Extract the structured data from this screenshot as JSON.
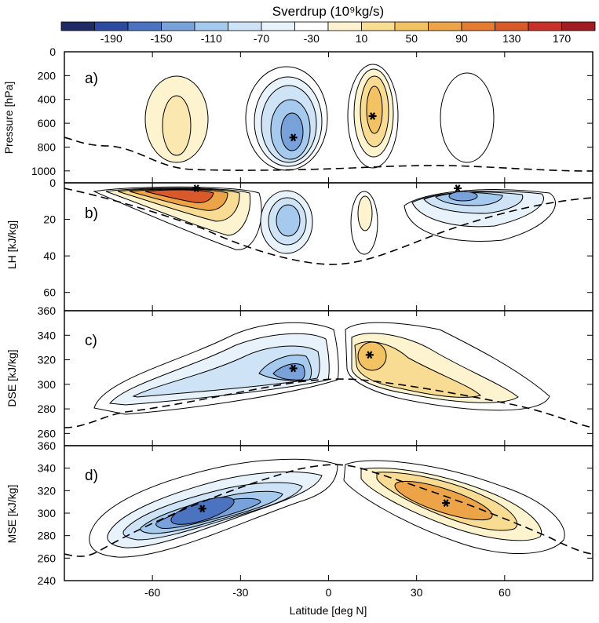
{
  "colorbar": {
    "title": "Sverdrup (10⁹kg/s)",
    "tick_labels": [
      "-190",
      "-150",
      "-110",
      "-70",
      "-30",
      "10",
      "50",
      "90",
      "130",
      "170"
    ],
    "colors": [
      "#1f2a66",
      "#2c4aa0",
      "#4b73c0",
      "#7aa2da",
      "#a6c9ee",
      "#cfe3f6",
      "#e8f2fb",
      "#ffffff",
      "#fdf3cf",
      "#f8dc94",
      "#f2c263",
      "#eda449",
      "#e47c34",
      "#d85a2b",
      "#c8312a",
      "#a11d22"
    ]
  },
  "xaxis": {
    "label": "Latitude [deg N]",
    "ticks": [
      "-60",
      "-30",
      "0",
      "30",
      "60"
    ]
  },
  "panels": [
    {
      "id": "a",
      "label": "a)",
      "ylabel": "Pressure [hPa]",
      "yticks": [
        "0",
        "200",
        "400",
        "600",
        "800",
        "1000"
      ]
    },
    {
      "id": "b",
      "label": "b)",
      "ylabel": "LH [kJ/kg]",
      "yticks": [
        "0",
        "20",
        "40",
        "60"
      ]
    },
    {
      "id": "c",
      "label": "c)",
      "ylabel": "DSE [kJ/kg]",
      "yticks": [
        "260",
        "280",
        "300",
        "320",
        "340",
        "360"
      ]
    },
    {
      "id": "d",
      "label": "d)",
      "ylabel": "MSE [kJ/kg]",
      "yticks": [
        "240",
        "260",
        "280",
        "300",
        "320",
        "340",
        "360"
      ]
    }
  ],
  "chart_data": [
    {
      "type": "heatmap",
      "panel": "a",
      "x": {
        "name": "Latitude",
        "unit": "deg N",
        "range": [
          -90,
          90
        ]
      },
      "y": {
        "name": "Pressure",
        "unit": "hPa",
        "range": [
          0,
          1100
        ],
        "reversed": true
      },
      "value_unit": "Sverdrup (10^9 kg/s)",
      "extrema": [
        {
          "lat": -12,
          "value": "min",
          "y": 720
        },
        {
          "lat": 15,
          "value": "max",
          "y": 540
        }
      ],
      "cells": [
        {
          "lat": -55,
          "y": 550,
          "value": 20,
          "lat_width": 14,
          "y_height": 700
        },
        {
          "lat": -12,
          "y": 560,
          "value": -60,
          "lat_width": 26,
          "y_height": 860
        },
        {
          "lat": 15,
          "y": 470,
          "value": 70,
          "lat_width": 16,
          "y_height": 840
        },
        {
          "lat": 58,
          "y": 500,
          "value": 5,
          "lat_width": 18,
          "y_height": 780
        }
      ]
    },
    {
      "type": "heatmap",
      "panel": "b",
      "x": {
        "name": "Latitude",
        "unit": "deg N",
        "range": [
          -90,
          90
        ]
      },
      "y": {
        "name": "LH",
        "unit": "kJ/kg",
        "range": [
          0,
          70
        ],
        "reversed": true
      },
      "value_unit": "Sverdrup (10^9 kg/s)",
      "extrema": [
        {
          "lat": -45,
          "value": "max",
          "y": 3
        },
        {
          "lat": 44,
          "value": "min",
          "y": 3
        }
      ],
      "cells": [
        {
          "lat": -45,
          "y": 10,
          "value": 140,
          "lat_width": 60,
          "y_height": 20
        },
        {
          "lat": -12,
          "y": 18,
          "value": -50,
          "lat_width": 18,
          "y_height": 40
        },
        {
          "lat": 14,
          "y": 18,
          "value": 40,
          "lat_width": 10,
          "y_height": 30
        },
        {
          "lat": 44,
          "y": 10,
          "value": -110,
          "lat_width": 50,
          "y_height": 20
        }
      ]
    },
    {
      "type": "heatmap",
      "panel": "c",
      "x": {
        "name": "Latitude",
        "unit": "deg N",
        "range": [
          -90,
          90
        ]
      },
      "y": {
        "name": "DSE",
        "unit": "kJ/kg",
        "range": [
          250,
          360
        ]
      },
      "value_unit": "Sverdrup (10^9 kg/s)",
      "extrema": [
        {
          "lat": -12,
          "value": "min",
          "y": 313
        },
        {
          "lat": 14,
          "value": "max",
          "y": 324
        }
      ],
      "cells": [
        {
          "lat": -30,
          "y": 300,
          "value": -60,
          "lat_width": 70,
          "y_height": 60
        },
        {
          "lat": 30,
          "y": 300,
          "value": 60,
          "lat_width": 60,
          "y_height": 60
        }
      ]
    },
    {
      "type": "heatmap",
      "panel": "d",
      "x": {
        "name": "Latitude",
        "unit": "deg N",
        "range": [
          -90,
          90
        ]
      },
      "y": {
        "name": "MSE",
        "unit": "kJ/kg",
        "range": [
          240,
          360
        ]
      },
      "value_unit": "Sverdrup (10^9 kg/s)",
      "extrema": [
        {
          "lat": -43,
          "value": "min",
          "y": 304
        },
        {
          "lat": 40,
          "value": "max",
          "y": 309
        }
      ],
      "cells": [
        {
          "lat": -38,
          "y": 308,
          "value": -150,
          "lat_width": 70,
          "y_height": 50
        },
        {
          "lat": 38,
          "y": 308,
          "value": 110,
          "lat_width": 60,
          "y_height": 50
        }
      ]
    }
  ]
}
